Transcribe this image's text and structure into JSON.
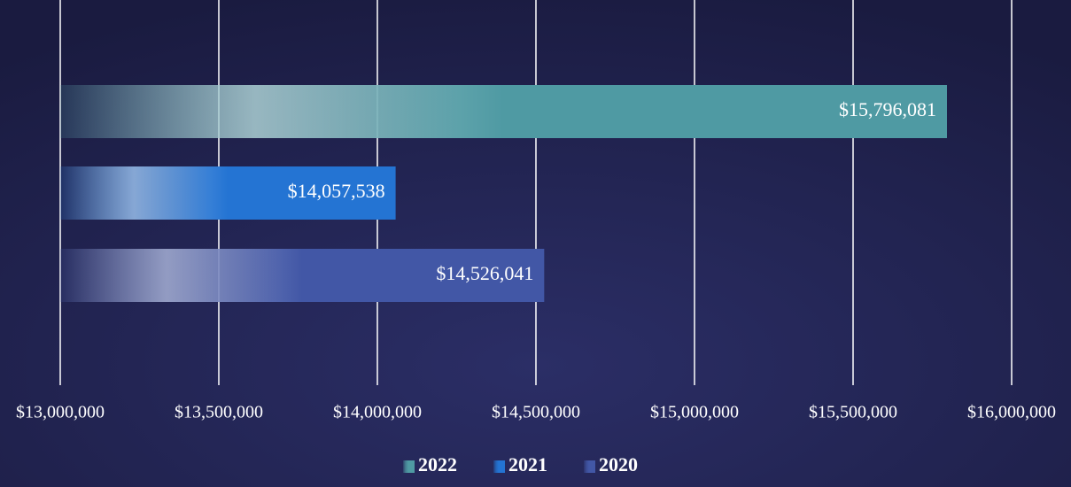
{
  "chart_data": {
    "type": "bar",
    "orientation": "horizontal",
    "series": [
      {
        "name": "2022",
        "color": "#4f9aa3",
        "values": [
          15796081
        ],
        "value_labels": [
          "$15,796,081"
        ]
      },
      {
        "name": "2021",
        "color": "#2474d3",
        "values": [
          14057538
        ],
        "value_labels": [
          "$14,057,538"
        ]
      },
      {
        "name": "2020",
        "color": "#4257a6",
        "values": [
          14526041
        ],
        "value_labels": [
          "$14,526,041"
        ]
      }
    ],
    "xlim": [
      13000000,
      16000000
    ],
    "xticks": [
      {
        "value": 13000000,
        "label": "$13,000,000"
      },
      {
        "value": 13500000,
        "label": "$13,500,000"
      },
      {
        "value": 14000000,
        "label": "$14,000,000"
      },
      {
        "value": 14500000,
        "label": "$14,500,000"
      },
      {
        "value": 15000000,
        "label": "$15,000,000"
      },
      {
        "value": 15500000,
        "label": "$15,500,000"
      },
      {
        "value": 16000000,
        "label": "$16,000,000"
      }
    ],
    "grid": true,
    "legend": "bottom"
  }
}
